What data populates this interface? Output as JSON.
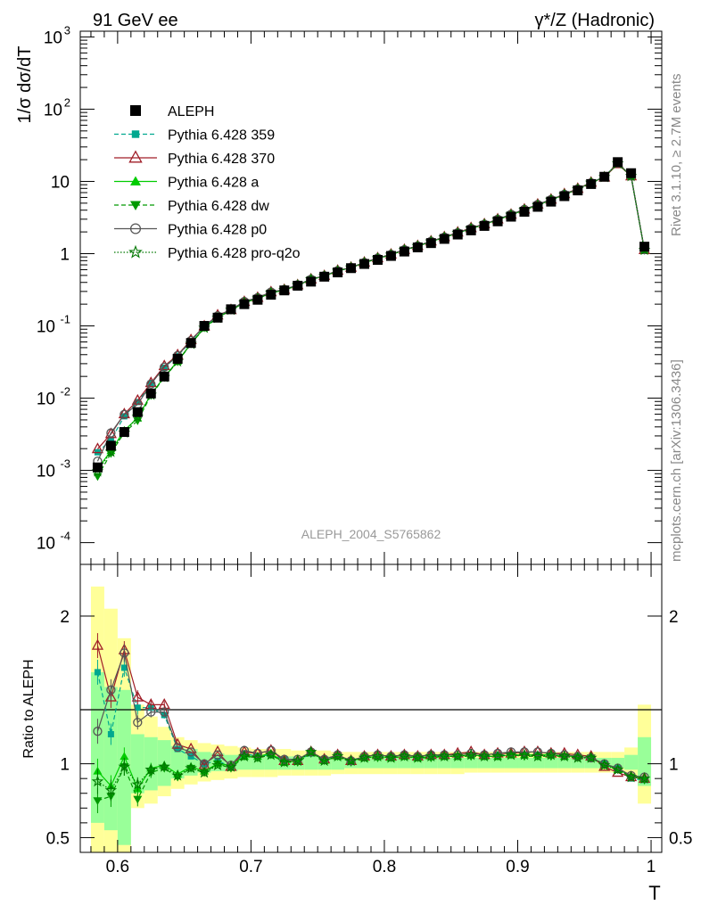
{
  "header": {
    "left": "91 GeV ee",
    "right": "γ*/Z (Hadronic)"
  },
  "side_texts": {
    "rivet": "Rivet 3.1.10, ≥ 2.7M events",
    "mcplots": "mcplots.cern.ch [arXiv:1306.3436]"
  },
  "watermark": "ALEPH_2004_S5765862",
  "chart_data": [
    {
      "type": "line",
      "panel": "main",
      "ylabel": "1/σ dσ/dT",
      "y_scale": "log",
      "ylim": [
        5e-05,
        1200
      ],
      "xlim": [
        0.572,
        1.008
      ],
      "y_ticks": [
        {
          "value": 0.0001,
          "label": "10",
          "exp": "-4"
        },
        {
          "value": 0.001,
          "label": "10",
          "exp": "-3"
        },
        {
          "value": 0.01,
          "label": "10",
          "exp": "-2"
        },
        {
          "value": 0.1,
          "label": "10",
          "exp": "-1"
        },
        {
          "value": 1,
          "label": "1",
          "exp": ""
        },
        {
          "value": 10,
          "label": "10",
          "exp": ""
        },
        {
          "value": 100,
          "label": "10",
          "exp": "2"
        },
        {
          "value": 1000,
          "label": "10",
          "exp": "3"
        }
      ],
      "x_bins": [
        0.585,
        0.595,
        0.605,
        0.615,
        0.625,
        0.635,
        0.645,
        0.655,
        0.665,
        0.675,
        0.685,
        0.695,
        0.705,
        0.715,
        0.725,
        0.735,
        0.745,
        0.755,
        0.765,
        0.775,
        0.785,
        0.795,
        0.805,
        0.815,
        0.825,
        0.835,
        0.845,
        0.855,
        0.865,
        0.875,
        0.885,
        0.895,
        0.905,
        0.915,
        0.925,
        0.935,
        0.945,
        0.955,
        0.965,
        0.975,
        0.985,
        0.995
      ],
      "aleph": [
        0.0011,
        0.0022,
        0.0034,
        0.0064,
        0.0116,
        0.0199,
        0.035,
        0.058,
        0.1,
        0.13,
        0.17,
        0.2,
        0.23,
        0.27,
        0.31,
        0.36,
        0.41,
        0.48,
        0.55,
        0.63,
        0.72,
        0.82,
        0.93,
        1.07,
        1.22,
        1.4,
        1.6,
        1.84,
        2.1,
        2.42,
        2.8,
        3.25,
        3.8,
        4.45,
        5.25,
        6.25,
        7.5,
        9.2,
        11.6,
        18.5,
        13.0,
        1.25
      ],
      "legend": [
        {
          "name": "ALEPH",
          "color": "#000000",
          "marker": "square",
          "dash": ""
        },
        {
          "name": "Pythia 6.428 359",
          "color": "#00a88f",
          "marker": "small-square",
          "dash": "5,3"
        },
        {
          "name": "Pythia 6.428 370",
          "color": "#a01e28",
          "marker": "open-triangle",
          "dash": ""
        },
        {
          "name": "Pythia 6.428 a",
          "color": "#00cc00",
          "marker": "triangle",
          "dash": ""
        },
        {
          "name": "Pythia 6.428 dw",
          "color": "#009900",
          "marker": "triangle-down",
          "dash": "5,3"
        },
        {
          "name": "Pythia 6.428 p0",
          "color": "#555555",
          "marker": "open-circle",
          "dash": ""
        },
        {
          "name": "Pythia 6.428 pro-q2o",
          "color": "#007700",
          "marker": "star",
          "dash": "1.5,2"
        }
      ]
    },
    {
      "type": "line",
      "panel": "ratio",
      "ylabel": "Ratio to ALEPH",
      "xlabel": "T",
      "ylim": [
        0.4,
        2.35
      ],
      "y_ticks": [
        {
          "value": 0.5,
          "label": "0.5"
        },
        {
          "value": 1,
          "label": "1"
        },
        {
          "value": 2,
          "label": "2"
        }
      ],
      "x_ticks": [
        {
          "value": 0.6,
          "label": "0.6"
        },
        {
          "value": 0.7,
          "label": "0.7"
        },
        {
          "value": 0.8,
          "label": "0.8"
        },
        {
          "value": 0.9,
          "label": "0.9"
        },
        {
          "value": 1.0,
          "label": "1"
        }
      ],
      "band_green": [
        0.6,
        0.55,
        0.45,
        0.8,
        0.82,
        0.85,
        0.9,
        0.92,
        0.94,
        0.95,
        0.95,
        0.96,
        0.96,
        0.96,
        0.96,
        0.96,
        0.96,
        0.96,
        0.96,
        0.97,
        0.97,
        0.97,
        0.97,
        0.97,
        0.97,
        0.97,
        0.97,
        0.97,
        0.97,
        0.97,
        0.97,
        0.97,
        0.97,
        0.97,
        0.97,
        0.97,
        0.97,
        0.97,
        0.97,
        0.97,
        0.96,
        0.85
      ],
      "band_green_hi": [
        1.62,
        1.52,
        1.5,
        1.2,
        1.18,
        1.16,
        1.12,
        1.1,
        1.08,
        1.07,
        1.06,
        1.06,
        1.05,
        1.05,
        1.05,
        1.05,
        1.05,
        1.05,
        1.04,
        1.04,
        1.04,
        1.04,
        1.04,
        1.04,
        1.04,
        1.04,
        1.04,
        1.04,
        1.04,
        1.04,
        1.04,
        1.04,
        1.04,
        1.04,
        1.04,
        1.04,
        1.04,
        1.04,
        1.04,
        1.04,
        1.06,
        1.18
      ],
      "band_yellow": [
        0.3,
        0.4,
        0.4,
        0.7,
        0.73,
        0.78,
        0.83,
        0.86,
        0.88,
        0.89,
        0.9,
        0.91,
        0.91,
        0.91,
        0.92,
        0.92,
        0.92,
        0.92,
        0.93,
        0.93,
        0.93,
        0.93,
        0.93,
        0.93,
        0.93,
        0.93,
        0.93,
        0.93,
        0.94,
        0.94,
        0.94,
        0.94,
        0.94,
        0.94,
        0.94,
        0.94,
        0.94,
        0.94,
        0.94,
        0.94,
        0.92,
        0.73
      ],
      "band_yellow_hi": [
        2.2,
        2.05,
        1.85,
        1.4,
        1.32,
        1.25,
        1.18,
        1.16,
        1.14,
        1.13,
        1.12,
        1.11,
        1.1,
        1.1,
        1.1,
        1.09,
        1.09,
        1.09,
        1.08,
        1.08,
        1.08,
        1.08,
        1.08,
        1.08,
        1.08,
        1.08,
        1.08,
        1.08,
        1.08,
        1.08,
        1.08,
        1.08,
        1.08,
        1.08,
        1.08,
        1.08,
        1.08,
        1.08,
        1.08,
        1.08,
        1.11,
        1.4
      ],
      "series": [
        {
          "name": "Pythia 6.428 359",
          "values": [
            1.62,
            1.2,
            1.65,
            1.38,
            1.38,
            1.33,
            1.1,
            1.05,
            1.0,
            1.02,
            0.98,
            1.07,
            1.05,
            1.06,
            1.03,
            1.02,
            1.07,
            1.03,
            1.05,
            1.02,
            1.04,
            1.05,
            1.05,
            1.06,
            1.05,
            1.06,
            1.05,
            1.05,
            1.06,
            1.05,
            1.06,
            1.06,
            1.06,
            1.06,
            1.06,
            1.05,
            1.05,
            1.04,
            1.0,
            0.97,
            0.9,
            0.89
          ]
        },
        {
          "name": "Pythia 6.428 370",
          "values": [
            1.8,
            1.45,
            1.77,
            1.45,
            1.4,
            1.4,
            1.13,
            1.1,
            0.99,
            1.08,
            0.98,
            1.08,
            1.07,
            1.09,
            1.02,
            1.02,
            1.08,
            1.03,
            1.06,
            1.02,
            1.05,
            1.06,
            1.05,
            1.06,
            1.05,
            1.06,
            1.06,
            1.07,
            1.08,
            1.06,
            1.07,
            1.07,
            1.08,
            1.08,
            1.07,
            1.07,
            1.06,
            1.05,
            0.98,
            0.94,
            0.91,
            0.9
          ]
        },
        {
          "name": "Pythia 6.428 a",
          "values": [
            0.95,
            0.85,
            1.05,
            0.83,
            0.97,
            0.99,
            0.93,
            0.98,
            0.95,
            1.0,
            0.99,
            1.05,
            1.05,
            1.07,
            1.01,
            1.02,
            1.08,
            1.02,
            1.05,
            1.02,
            1.04,
            1.05,
            1.04,
            1.05,
            1.04,
            1.05,
            1.05,
            1.05,
            1.06,
            1.05,
            1.05,
            1.06,
            1.06,
            1.06,
            1.06,
            1.05,
            1.05,
            1.04,
            1.0,
            0.96,
            0.92,
            0.9
          ]
        },
        {
          "name": "Pythia 6.428 dw",
          "values": [
            0.75,
            0.78,
            0.98,
            0.76,
            0.94,
            0.97,
            0.91,
            0.97,
            0.94,
            1.0,
            0.97,
            1.05,
            1.04,
            1.06,
            1.01,
            1.01,
            1.07,
            1.02,
            1.05,
            1.01,
            1.04,
            1.04,
            1.04,
            1.05,
            1.04,
            1.04,
            1.05,
            1.05,
            1.05,
            1.05,
            1.05,
            1.06,
            1.05,
            1.05,
            1.05,
            1.05,
            1.04,
            1.04,
            0.99,
            0.96,
            0.91,
            0.89
          ]
        },
        {
          "name": "Pythia 6.428 p0",
          "values": [
            1.22,
            1.5,
            1.75,
            1.28,
            1.35,
            1.35,
            1.11,
            1.08,
            1.0,
            1.06,
            0.99,
            1.09,
            1.07,
            1.09,
            1.03,
            1.03,
            1.08,
            1.03,
            1.06,
            1.02,
            1.05,
            1.06,
            1.05,
            1.06,
            1.05,
            1.06,
            1.06,
            1.06,
            1.07,
            1.06,
            1.07,
            1.08,
            1.08,
            1.08,
            1.07,
            1.06,
            1.05,
            1.04,
            1.0,
            0.97,
            0.92,
            0.91
          ]
        },
        {
          "name": "Pythia 6.428 pro-q2o",
          "values": [
            0.88,
            0.82,
            0.98,
            0.86,
            0.96,
            0.98,
            0.92,
            0.97,
            0.94,
            0.99,
            0.98,
            1.05,
            1.04,
            1.06,
            1.01,
            1.02,
            1.08,
            1.02,
            1.05,
            1.02,
            1.04,
            1.05,
            1.04,
            1.05,
            1.04,
            1.05,
            1.05,
            1.05,
            1.06,
            1.05,
            1.05,
            1.06,
            1.06,
            1.05,
            1.06,
            1.05,
            1.04,
            1.04,
            0.99,
            0.96,
            0.91,
            0.9
          ]
        }
      ]
    }
  ]
}
